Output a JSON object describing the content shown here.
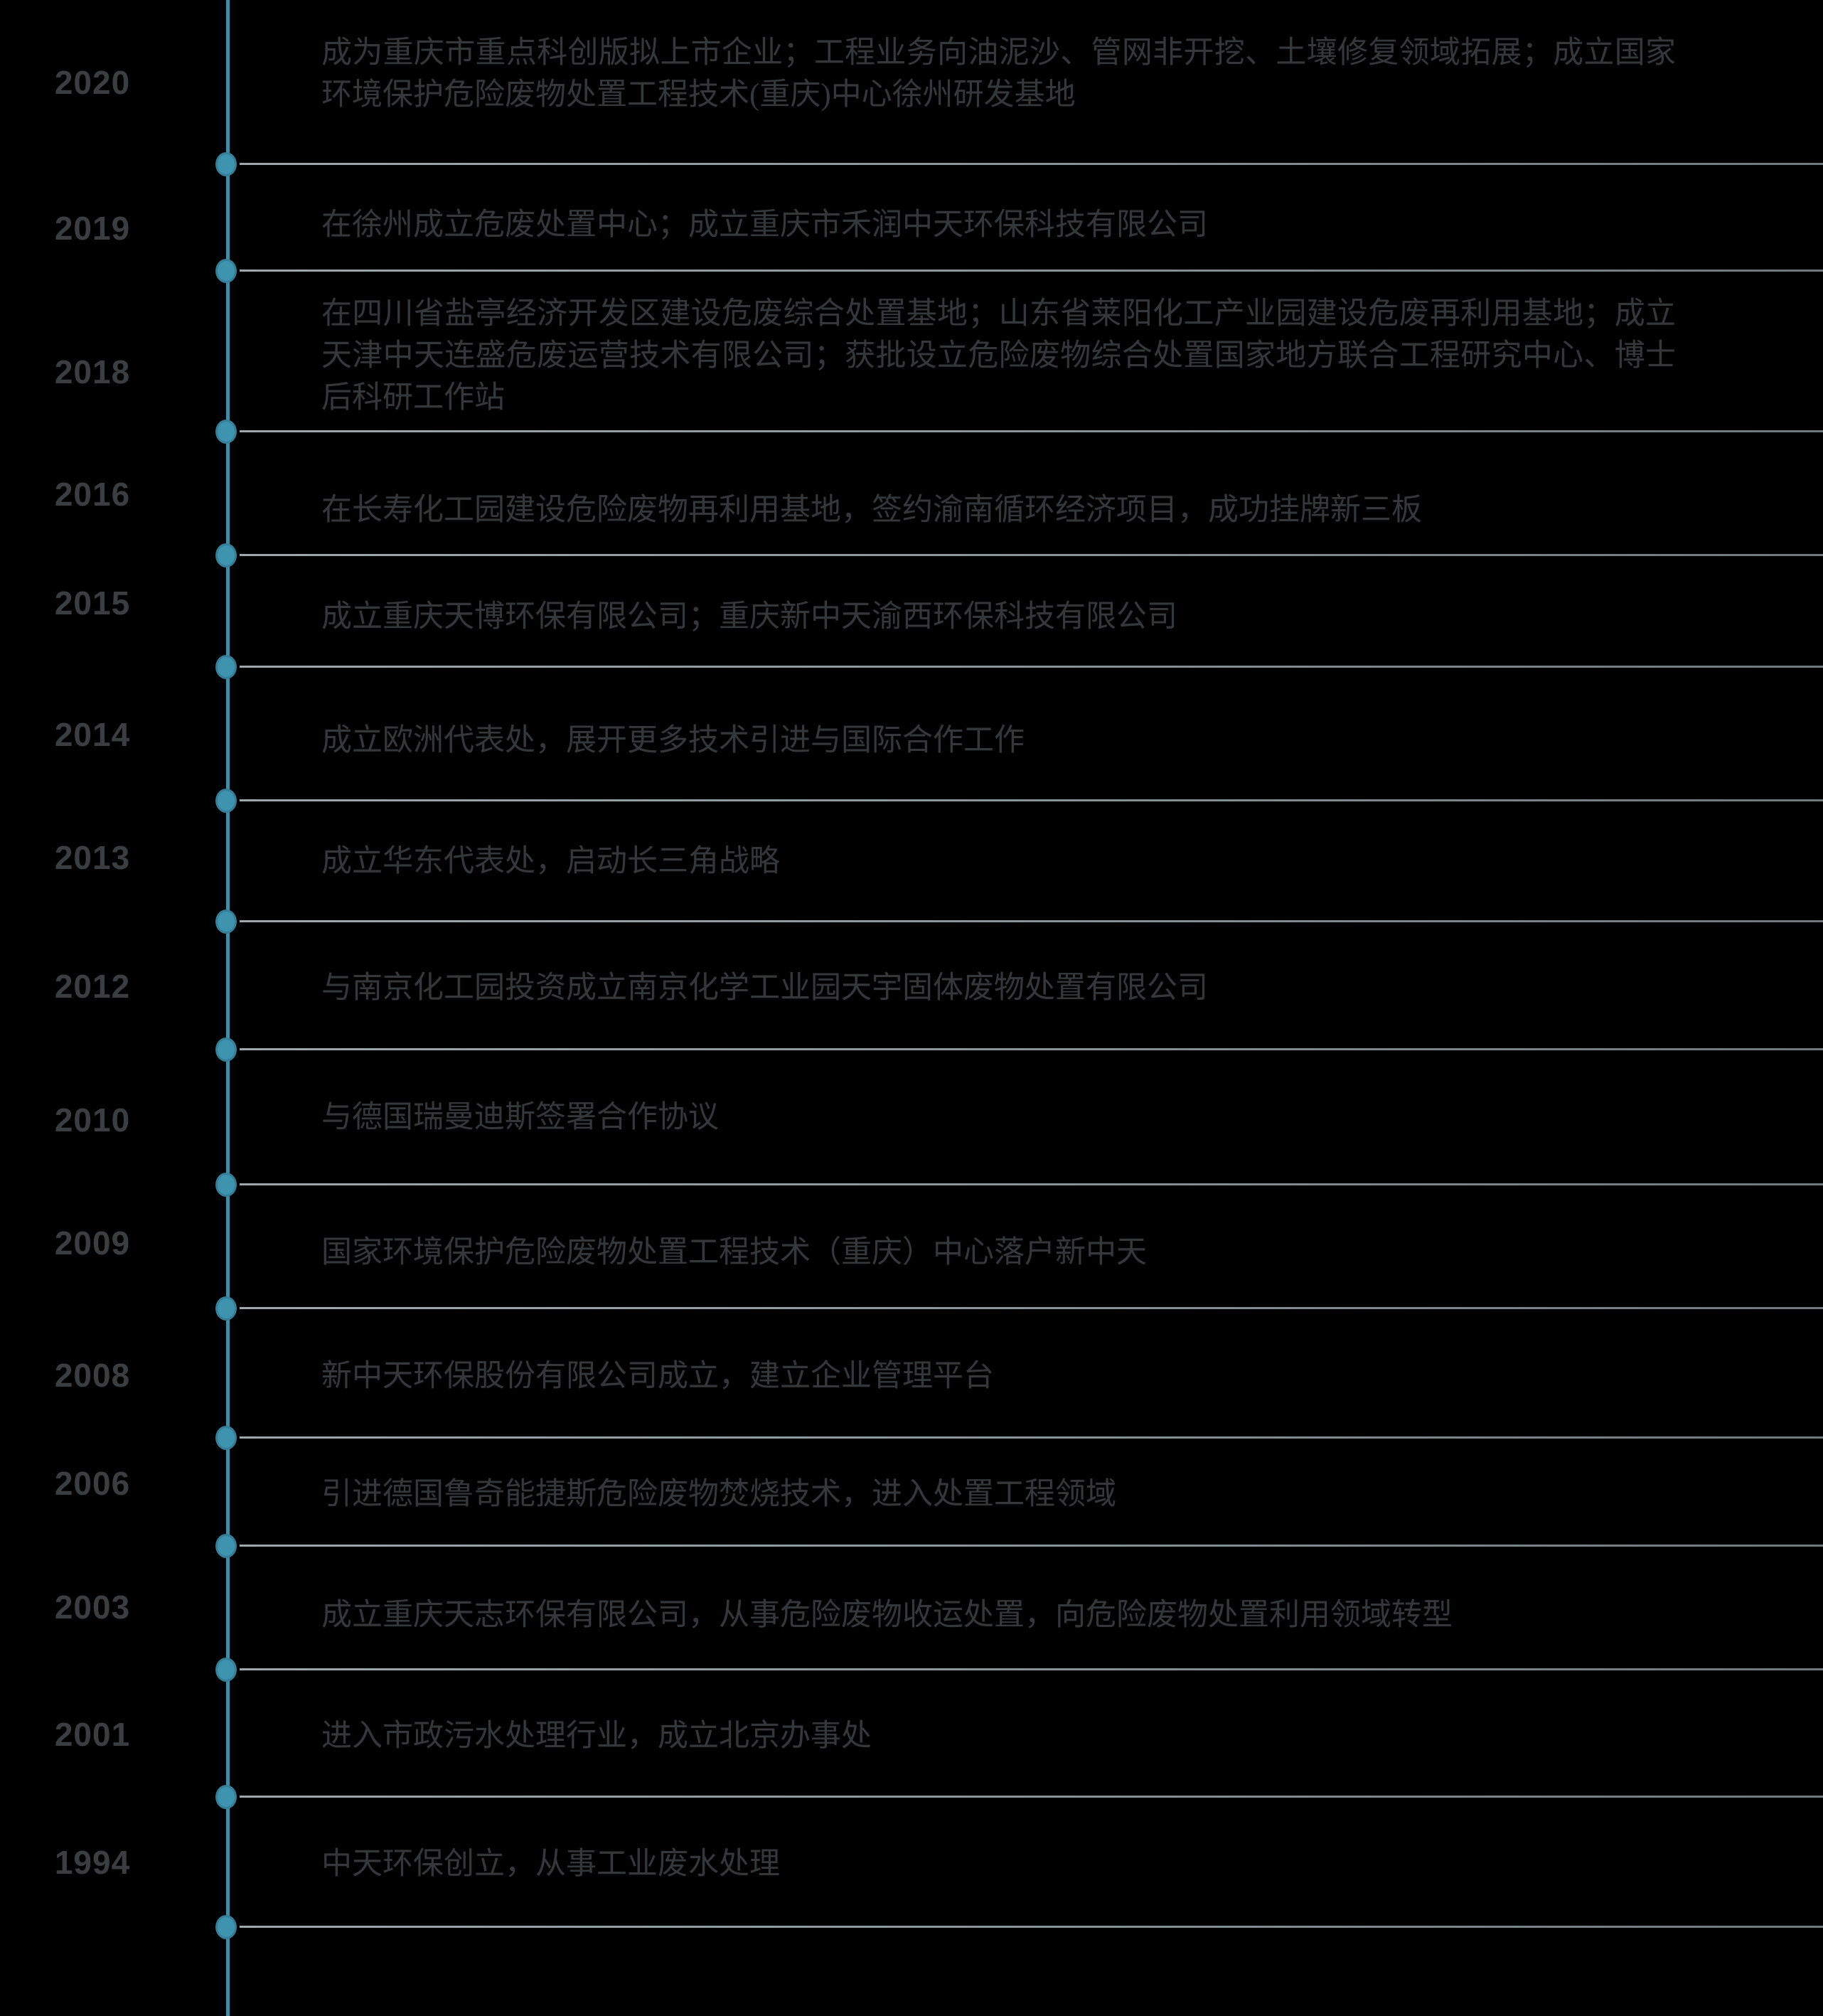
{
  "page": {
    "background": "#000000"
  },
  "timeline": {
    "line_color": "#3D8FA8",
    "dot_fill": "#3E93AE",
    "dot_stroke": "#357F98",
    "connector_color": "#8C979B",
    "year_color": "#3B3E40",
    "text_color": "#35383A",
    "events": [
      {
        "year": "2020",
        "description": "成为重庆市重点科创版拟上市企业；工程业务向油泥沙、管网非开挖、土壤修复领域拓展；成立国家环境保护危险废物处置工程技术(重庆)中心徐州研发基地"
      },
      {
        "year": "2019",
        "description": "在徐州成立危废处置中心；成立重庆市禾润中天环保科技有限公司"
      },
      {
        "year": "2018",
        "description": "在四川省盐亭经济开发区建设危废综合处置基地；山东省莱阳化工产业园建设危废再利用基地；成立天津中天连盛危废运营技术有限公司；获批设立危险废物综合处置国家地方联合工程研究中心、博士后科研工作站"
      },
      {
        "year": "2016",
        "description": "在长寿化工园建设危险废物再利用基地，签约渝南循环经济项目，成功挂牌新三板"
      },
      {
        "year": "2015",
        "description": "成立重庆天博环保有限公司；重庆新中天渝西环保科技有限公司"
      },
      {
        "year": "2014",
        "description": "成立欧洲代表处，展开更多技术引进与国际合作工作"
      },
      {
        "year": "2013",
        "description": "成立华东代表处，启动长三角战略"
      },
      {
        "year": "2012",
        "description": "与南京化工园投资成立南京化学工业园天宇固体废物处置有限公司"
      },
      {
        "year": "2010",
        "description": "与德国瑞曼迪斯签署合作协议"
      },
      {
        "year": "2009",
        "description": "国家环境保护危险废物处置工程技术（重庆）中心落户新中天"
      },
      {
        "year": "2008",
        "description": "新中天环保股份有限公司成立，建立企业管理平台"
      },
      {
        "year": "2006",
        "description": "引进德国鲁奇能捷斯危险废物焚烧技术，进入处置工程领域"
      },
      {
        "year": "2003",
        "description": "成立重庆天志环保有限公司，从事危险废物收运处置，向危险废物处置利用领域转型"
      },
      {
        "year": "2001",
        "description": "进入市政污水处理行业，成立北京办事处"
      },
      {
        "year": "1994",
        "description": "中天环保创立，从事工业废水处理"
      }
    ]
  }
}
